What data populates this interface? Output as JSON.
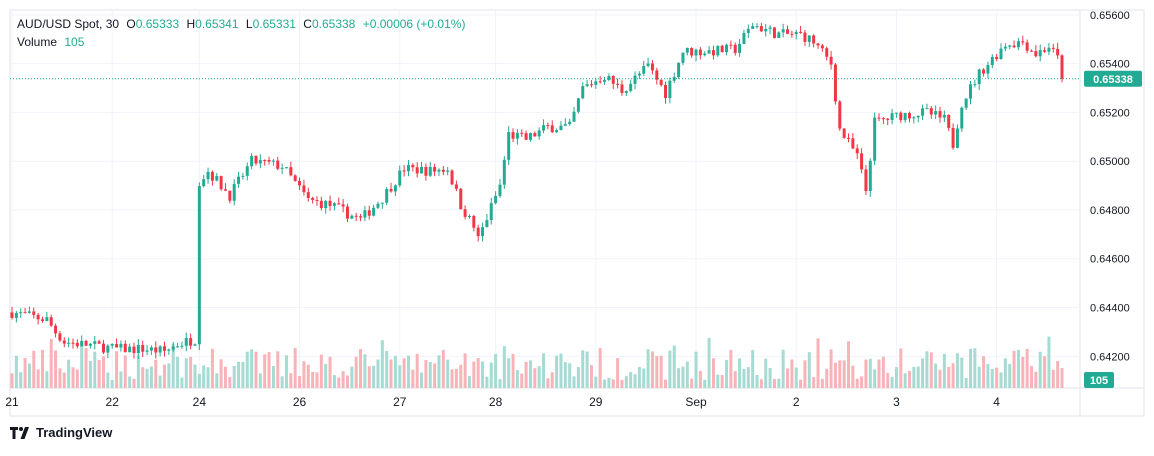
{
  "header": {
    "symbol": "AUD/USD Spot, 30",
    "open_label": "O",
    "open": "0.65333",
    "high_label": "H",
    "high": "0.65341",
    "low_label": "L",
    "low": "0.65331",
    "close_label": "C",
    "close": "0.65338",
    "change": "+0.00006 (+0.01%)",
    "volume_label": "Volume",
    "volume": "105"
  },
  "brand": {
    "name": "TradingView",
    "icon": "tradingview-logo-icon"
  },
  "colors": {
    "up": "#22ab94",
    "down": "#f23645",
    "up_volume": "#a5dbd2",
    "down_volume": "#f8b3b9",
    "price_tag": "#22ab94",
    "grid": "#f0f3fa"
  },
  "chart_data": {
    "type": "candlestick",
    "title": "AUD/USD Spot, 30",
    "ylim": [
      0.6407,
      0.6562
    ],
    "y_ticks": [
      "0.65600",
      "0.65400",
      "0.65200",
      "0.65000",
      "0.64800",
      "0.64600",
      "0.64400",
      "0.64200"
    ],
    "y_tick_values": [
      0.656,
      0.654,
      0.652,
      0.65,
      0.648,
      0.646,
      0.644,
      0.642
    ],
    "x_ticks": [
      "21",
      "22",
      "24",
      "26",
      "27",
      "28",
      "29",
      "Sep",
      "2",
      "3",
      "4"
    ],
    "x_tick_bars": [
      0,
      23,
      43,
      66,
      89,
      111,
      134,
      157,
      180,
      203,
      226
    ],
    "last_price": "0.65338",
    "last_price_value": 0.65338,
    "last_volume": "105",
    "close_path": [
      [
        0,
        0.6438
      ],
      [
        8,
        0.6435
      ],
      [
        10,
        0.643
      ],
      [
        12,
        0.6426
      ],
      [
        16,
        0.6425
      ],
      [
        20,
        0.6424
      ],
      [
        24,
        0.6423
      ],
      [
        30,
        0.6423
      ],
      [
        35,
        0.6422
      ],
      [
        38,
        0.6425
      ],
      [
        42,
        0.6427
      ],
      [
        43,
        0.6492
      ],
      [
        45,
        0.6496
      ],
      [
        50,
        0.6486
      ],
      [
        55,
        0.65
      ],
      [
        62,
        0.6498
      ],
      [
        68,
        0.6484
      ],
      [
        73,
        0.6482
      ],
      [
        80,
        0.6476
      ],
      [
        85,
        0.6485
      ],
      [
        90,
        0.6497
      ],
      [
        96,
        0.6496
      ],
      [
        100,
        0.6497
      ],
      [
        103,
        0.6482
      ],
      [
        106,
        0.6473
      ],
      [
        107,
        0.6468
      ],
      [
        112,
        0.649
      ],
      [
        114,
        0.6511
      ],
      [
        118,
        0.6509
      ],
      [
        123,
        0.6514
      ],
      [
        128,
        0.6514
      ],
      [
        131,
        0.653
      ],
      [
        136,
        0.6535
      ],
      [
        140,
        0.6529
      ],
      [
        146,
        0.6539
      ],
      [
        150,
        0.6528
      ],
      [
        154,
        0.6545
      ],
      [
        160,
        0.6545
      ],
      [
        166,
        0.6546
      ],
      [
        170,
        0.6556
      ],
      [
        176,
        0.6552
      ],
      [
        181,
        0.6552
      ],
      [
        184,
        0.6549
      ],
      [
        188,
        0.654
      ],
      [
        190,
        0.6513
      ],
      [
        194,
        0.6502
      ],
      [
        196,
        0.6488
      ],
      [
        198,
        0.6516
      ],
      [
        204,
        0.6519
      ],
      [
        210,
        0.652
      ],
      [
        214,
        0.6517
      ],
      [
        216,
        0.6507
      ],
      [
        218,
        0.6524
      ],
      [
        222,
        0.6536
      ],
      [
        228,
        0.6548
      ],
      [
        232,
        0.6549
      ],
      [
        235,
        0.6544
      ],
      [
        238,
        0.6547
      ],
      [
        240,
        0.6542
      ],
      [
        241,
        0.65338
      ]
    ]
  }
}
